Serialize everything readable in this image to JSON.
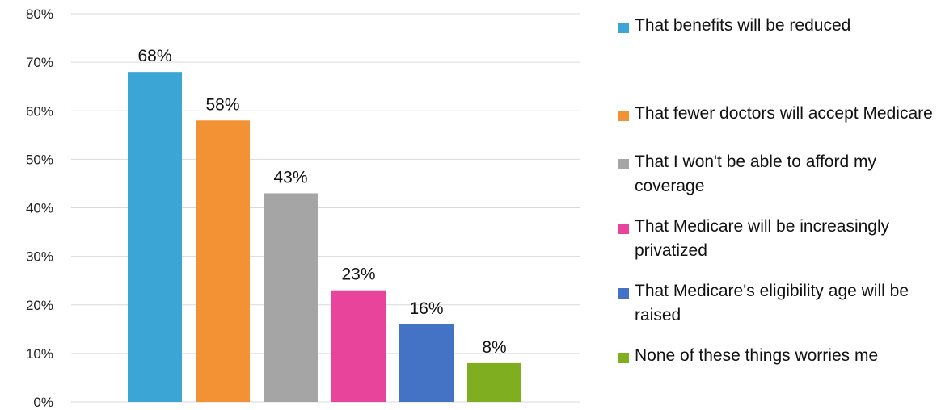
{
  "chart_data": {
    "type": "bar",
    "categories": [
      "That benefits will be reduced",
      "That fewer doctors will accept Medicare",
      "That I won't be able to afford my coverage",
      "That Medicare will be increasingly privatized",
      "That Medicare's eligibility age will be raised",
      "None of these things worries me"
    ],
    "values": [
      68,
      58,
      43,
      23,
      16,
      8
    ],
    "data_labels": [
      "68%",
      "58%",
      "43%",
      "23%",
      "16%",
      "8%"
    ],
    "colors": [
      "#3BA5D6",
      "#F39135",
      "#A5A5A5",
      "#E8449B",
      "#4472C4",
      "#7FAF21"
    ],
    "ylim": [
      0,
      80
    ],
    "yticks": [
      0,
      10,
      20,
      30,
      40,
      50,
      60,
      70,
      80
    ],
    "ytick_labels": [
      "0%",
      "10%",
      "20%",
      "30%",
      "40%",
      "50%",
      "60%",
      "70%",
      "80%"
    ],
    "grid": true,
    "legend_position": "right",
    "title": "",
    "xlabel": "",
    "ylabel": ""
  }
}
